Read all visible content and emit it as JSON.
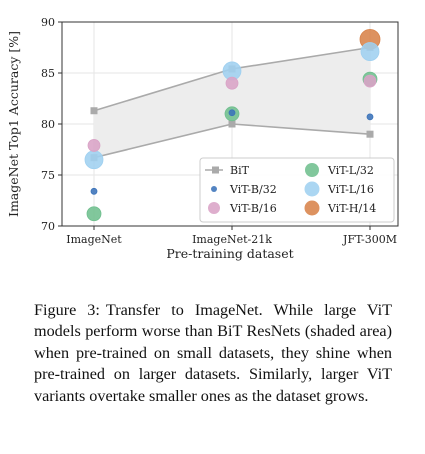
{
  "figure": {
    "caption_label": "Figure 3:",
    "caption_text": "Transfer to ImageNet. While large ViT models perform worse than BiT ResNets (shaded area) when pre-trained on small datasets, they shine when pre-trained on larger datasets. Similarly, larger ViT variants overtake smaller ones as the dataset grows."
  },
  "chart_data": {
    "type": "scatter",
    "title": "",
    "xlabel": "Pre-training dataset",
    "ylabel": "ImageNet Top1 Accuracy [%]",
    "categories": [
      "ImageNet",
      "ImageNet-21k",
      "JFT-300M"
    ],
    "ylim": [
      70,
      90
    ],
    "yticks": [
      70,
      75,
      80,
      85,
      90
    ],
    "grid": true,
    "legend_placement": "lower-right",
    "bit_band": {
      "name": "BiT",
      "upper": [
        81.3,
        85.4,
        87.5
      ],
      "lower": [
        76.7,
        80.0,
        79.0
      ],
      "color": "#aaaaaa",
      "fill": "#ededed"
    },
    "series": [
      {
        "name": "ViT-B/32",
        "color": "#3b73b9",
        "size": "xs",
        "values": [
          73.4,
          81.1,
          80.7
        ]
      },
      {
        "name": "ViT-B/16",
        "color": "#d9a3c6",
        "size": "s",
        "values": [
          77.9,
          84.0,
          84.2
        ]
      },
      {
        "name": "ViT-L/32",
        "color": "#6fbf8e",
        "size": "m",
        "values": [
          71.2,
          81.0,
          84.4
        ]
      },
      {
        "name": "ViT-L/16",
        "color": "#9fd0f0",
        "size": "l",
        "values": [
          76.5,
          85.2,
          87.1
        ]
      },
      {
        "name": "ViT-H/14",
        "color": "#d8834a",
        "size": "xl",
        "values": [
          null,
          null,
          88.3
        ]
      }
    ]
  }
}
